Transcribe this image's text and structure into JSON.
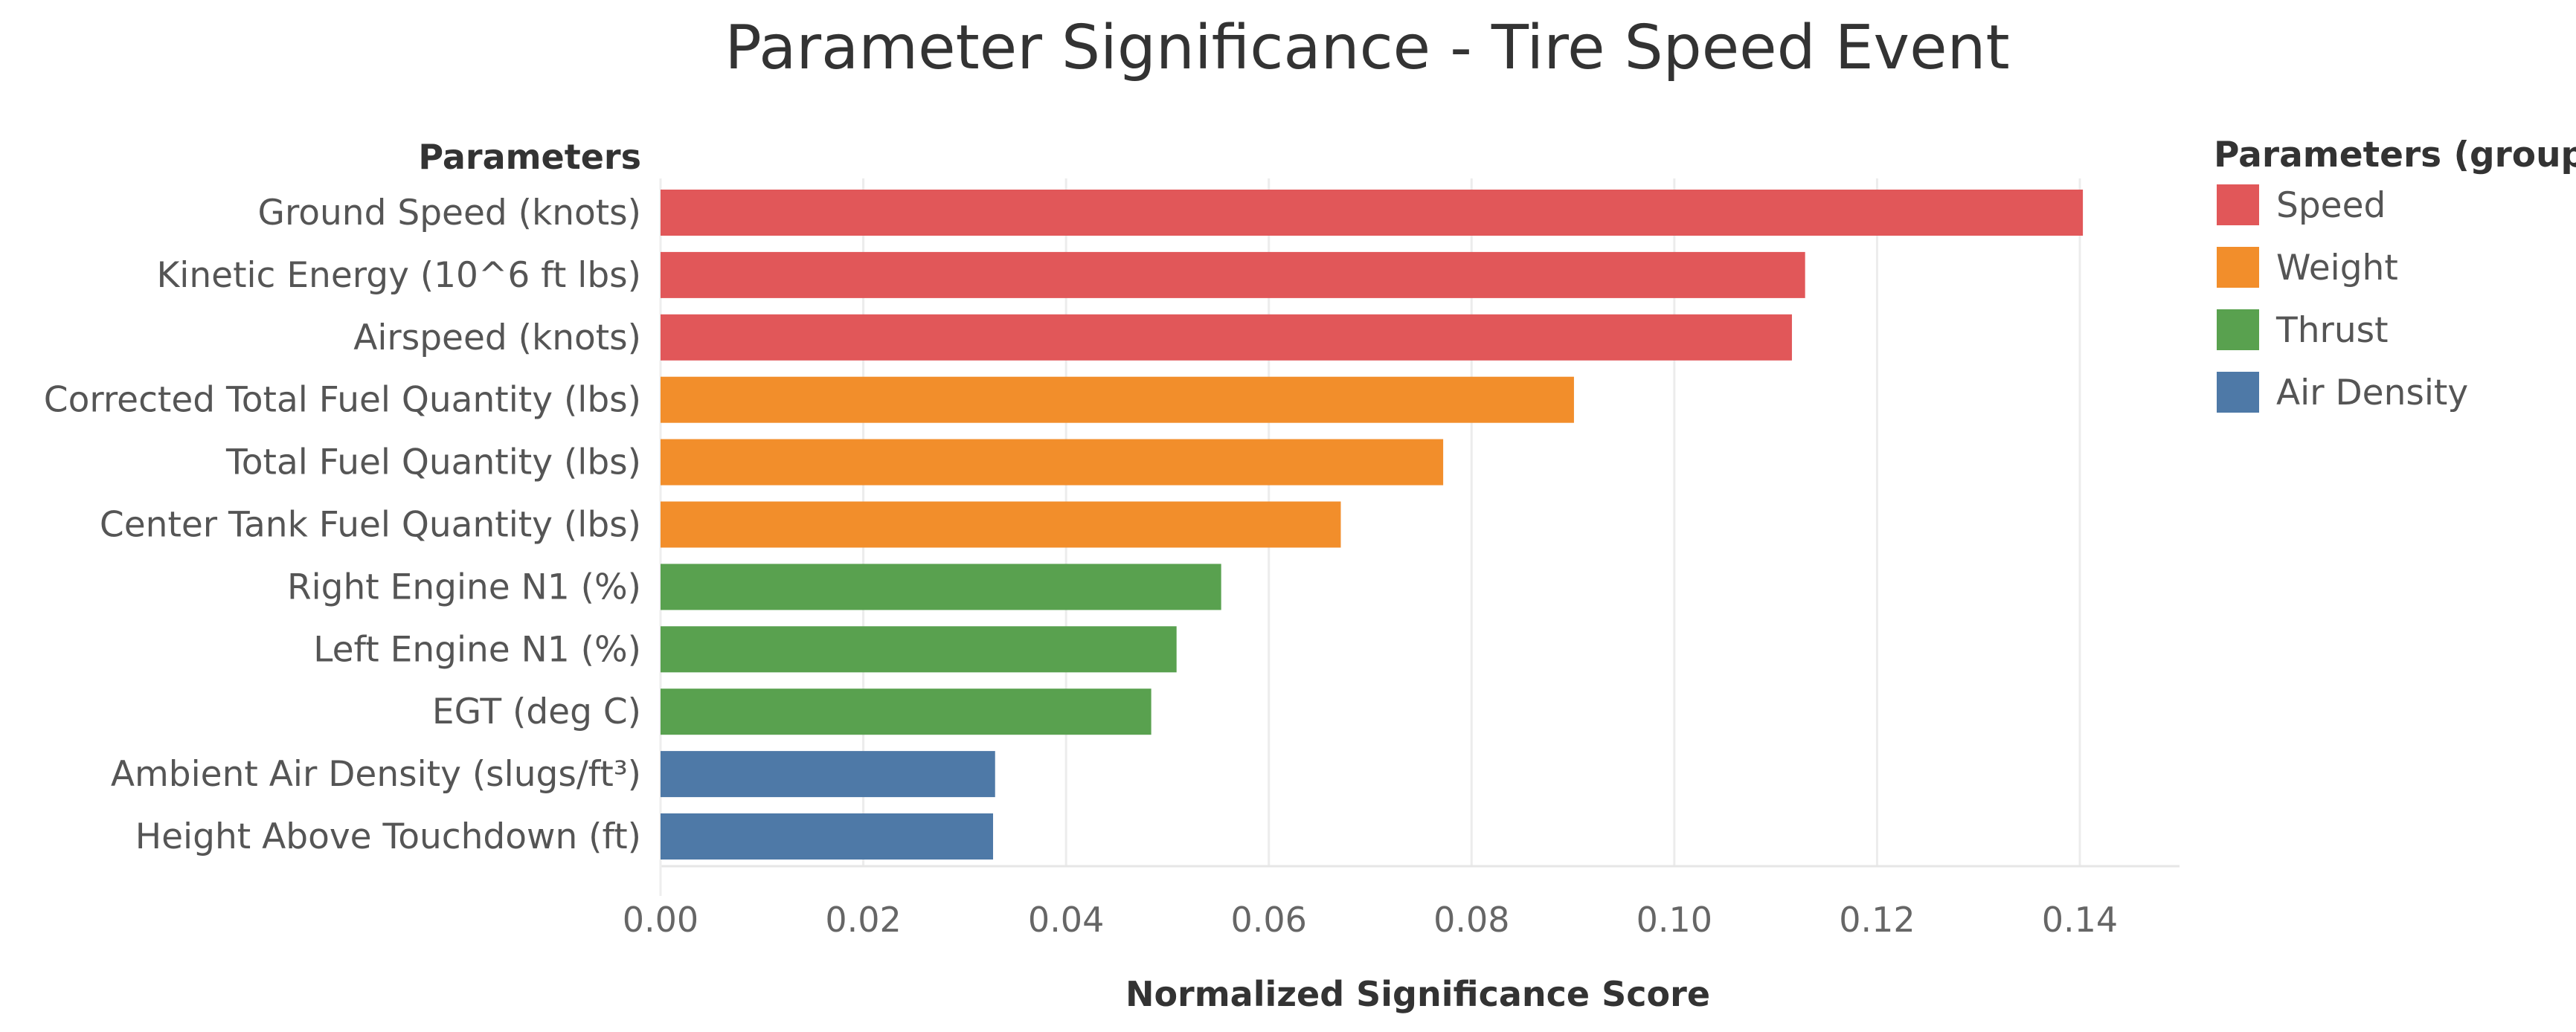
{
  "chart_data": {
    "type": "bar",
    "orientation": "horizontal",
    "title": "Parameter Significance - Tire Speed Event",
    "row_header": "Parameters",
    "xlabel": "Normalized Significance Score",
    "xlim": [
      0,
      0.15
    ],
    "x_ticks": [
      "0.00",
      "0.02",
      "0.04",
      "0.06",
      "0.08",
      "0.10",
      "0.12",
      "0.14"
    ],
    "grid": "vertical gridlines",
    "legend": {
      "title": "Parameters (group)",
      "position": "right",
      "entries": [
        {
          "name": "Speed",
          "color": "#E15759"
        },
        {
          "name": "Weight",
          "color": "#F28E2B"
        },
        {
          "name": "Thrust",
          "color": "#59A14F"
        },
        {
          "name": "Air Density",
          "color": "#4E79A7"
        }
      ]
    },
    "categories": [
      "Ground Speed (knots)",
      "Kinetic Energy (10^6 ft lbs)",
      "Airspeed (knots)",
      "Corrected Total Fuel Quantity (lbs)",
      "Total Fuel Quantity (lbs)",
      "Center Tank Fuel Quantity (lbs)",
      "Right Engine N1 (%)",
      "Left Engine N1 (%)",
      "EGT (deg C)",
      "Ambient Air Density (slugs/ft³)",
      "Height Above Touchdown (ft)"
    ],
    "values": [
      0.1403,
      0.1129,
      0.1116,
      0.0901,
      0.0772,
      0.0671,
      0.0553,
      0.0509,
      0.0484,
      0.033,
      0.0328
    ],
    "groups": [
      "Speed",
      "Speed",
      "Speed",
      "Weight",
      "Weight",
      "Weight",
      "Thrust",
      "Thrust",
      "Thrust",
      "Air Density",
      "Air Density"
    ]
  }
}
